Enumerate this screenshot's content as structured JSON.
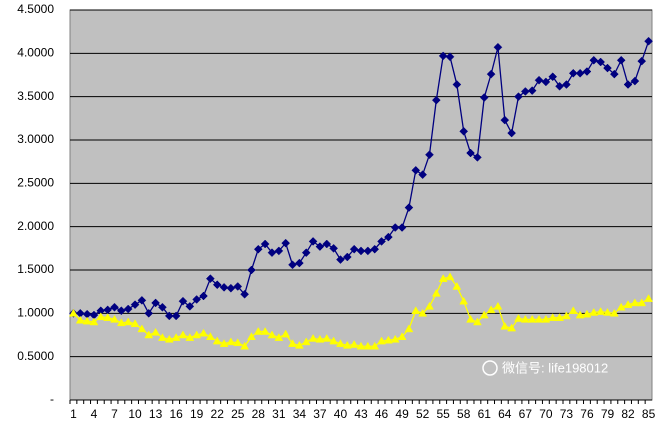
{
  "chart_data": {
    "type": "line",
    "categories": [
      "1",
      null,
      null,
      "4",
      null,
      null,
      "7",
      null,
      null,
      "10",
      null,
      null,
      "13",
      null,
      null,
      "16",
      null,
      null,
      "19",
      null,
      null,
      "22",
      null,
      null,
      "25",
      null,
      null,
      "28",
      null,
      null,
      "31",
      null,
      null,
      "34",
      null,
      null,
      "37",
      null,
      null,
      "40",
      null,
      null,
      "43",
      null,
      null,
      "46",
      null,
      null,
      "49",
      null,
      null,
      "52",
      null,
      null,
      "55",
      null,
      null,
      "58",
      null,
      null,
      "61",
      null,
      null,
      "64",
      null,
      null,
      "67",
      null,
      null,
      "70",
      null,
      null,
      "73",
      null,
      null,
      "76",
      null,
      null,
      "79",
      null,
      null,
      "82",
      null,
      null,
      "85"
    ],
    "series": [
      {
        "color": "#000080",
        "marker": "diamond",
        "values": [
          1.0,
          1.0,
          0.99,
          0.98,
          1.03,
          1.04,
          1.07,
          1.03,
          1.05,
          1.1,
          1.15,
          1.0,
          1.12,
          1.07,
          0.97,
          0.97,
          1.14,
          1.08,
          1.16,
          1.2,
          1.4,
          1.33,
          1.3,
          1.29,
          1.31,
          1.22,
          1.5,
          1.74,
          1.8,
          1.7,
          1.72,
          1.81,
          1.56,
          1.58,
          1.7,
          1.83,
          1.77,
          1.8,
          1.75,
          1.62,
          1.65,
          1.74,
          1.72,
          1.72,
          1.74,
          1.83,
          1.88,
          1.99,
          1.99,
          2.22,
          2.65,
          2.6,
          2.83,
          3.46,
          3.97,
          3.96,
          3.64,
          3.1,
          2.85,
          2.8,
          3.49,
          3.76,
          4.07,
          3.23,
          3.08,
          3.5,
          3.56,
          3.57,
          3.69,
          3.67,
          3.73,
          3.62,
          3.64,
          3.77,
          3.77,
          3.79,
          3.92,
          3.9,
          3.83,
          3.76,
          3.92,
          3.64,
          3.68,
          3.91,
          4.14
        ]
      },
      {
        "color": "#ffff00",
        "marker": "triangle",
        "values": [
          1.0,
          0.92,
          0.91,
          0.9,
          0.96,
          0.95,
          0.93,
          0.89,
          0.9,
          0.88,
          0.82,
          0.75,
          0.78,
          0.72,
          0.7,
          0.72,
          0.75,
          0.72,
          0.75,
          0.77,
          0.73,
          0.68,
          0.65,
          0.67,
          0.66,
          0.62,
          0.73,
          0.79,
          0.79,
          0.75,
          0.72,
          0.76,
          0.65,
          0.63,
          0.67,
          0.71,
          0.7,
          0.71,
          0.68,
          0.65,
          0.63,
          0.64,
          0.62,
          0.62,
          0.62,
          0.68,
          0.69,
          0.7,
          0.73,
          0.82,
          1.03,
          1.0,
          1.08,
          1.23,
          1.4,
          1.42,
          1.31,
          1.14,
          0.93,
          0.9,
          0.98,
          1.04,
          1.08,
          0.85,
          0.83,
          0.94,
          0.93,
          0.93,
          0.93,
          0.93,
          0.95,
          0.95,
          0.97,
          1.03,
          0.98,
          0.99,
          1.01,
          1.02,
          1.01,
          1.0,
          1.07,
          1.1,
          1.12,
          1.12,
          1.17
        ]
      }
    ],
    "ylim": [
      0,
      4.5
    ],
    "yticks": [
      {
        "value": 0,
        "label": "-"
      },
      {
        "value": 0.5,
        "label": "0.5000"
      },
      {
        "value": 1,
        "label": "1.0000"
      },
      {
        "value": 1.5,
        "label": "1.5000"
      },
      {
        "value": 2,
        "label": "2.0000"
      },
      {
        "value": 2.5,
        "label": "2.5000"
      },
      {
        "value": 3,
        "label": "3.0000"
      },
      {
        "value": 3.5,
        "label": "3.5000"
      },
      {
        "value": 4,
        "label": "4.0000"
      },
      {
        "value": 4.5,
        "label": "4.5000"
      }
    ],
    "grid": true,
    "watermark": "微信号: life198012"
  }
}
